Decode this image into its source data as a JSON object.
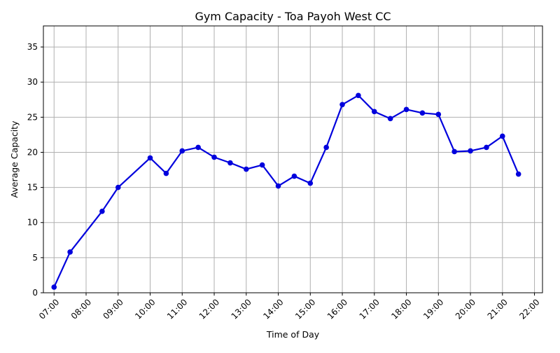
{
  "chart_data": {
    "type": "line",
    "title": "Gym Capacity - Toa Payoh West CC",
    "xlabel": "Time of Day",
    "ylabel": "Average Capacity",
    "x_ticks": [
      "07:00",
      "08:00",
      "09:00",
      "10:00",
      "11:00",
      "12:00",
      "13:00",
      "14:00",
      "15:00",
      "16:00",
      "17:00",
      "18:00",
      "19:00",
      "20:00",
      "21:00",
      "22:00"
    ],
    "y_ticks": [
      0,
      5,
      10,
      15,
      20,
      25,
      30,
      35
    ],
    "xlim": [
      "06:40",
      "22:15"
    ],
    "ylim": [
      0,
      38
    ],
    "grid": true,
    "series": [
      {
        "color": "#0000dd",
        "marker": "circle",
        "points": [
          {
            "x": "07:00",
            "y": 0.8
          },
          {
            "x": "07:30",
            "y": 5.8
          },
          {
            "x": "08:30",
            "y": 11.6
          },
          {
            "x": "09:00",
            "y": 15.0
          },
          {
            "x": "10:00",
            "y": 19.2
          },
          {
            "x": "10:30",
            "y": 17.0
          },
          {
            "x": "11:00",
            "y": 20.2
          },
          {
            "x": "11:30",
            "y": 20.7
          },
          {
            "x": "12:00",
            "y": 19.3
          },
          {
            "x": "12:30",
            "y": 18.5
          },
          {
            "x": "13:00",
            "y": 17.6
          },
          {
            "x": "13:30",
            "y": 18.2
          },
          {
            "x": "14:00",
            "y": 15.2
          },
          {
            "x": "14:30",
            "y": 16.6
          },
          {
            "x": "15:00",
            "y": 15.6
          },
          {
            "x": "15:30",
            "y": 20.7
          },
          {
            "x": "16:00",
            "y": 26.8
          },
          {
            "x": "16:30",
            "y": 28.1
          },
          {
            "x": "17:00",
            "y": 25.8
          },
          {
            "x": "17:30",
            "y": 24.8
          },
          {
            "x": "18:00",
            "y": 26.1
          },
          {
            "x": "18:30",
            "y": 25.6
          },
          {
            "x": "19:00",
            "y": 25.4
          },
          {
            "x": "19:30",
            "y": 20.1
          },
          {
            "x": "20:00",
            "y": 20.2
          },
          {
            "x": "20:30",
            "y": 20.7
          },
          {
            "x": "21:00",
            "y": 22.3
          },
          {
            "x": "21:30",
            "y": 16.9
          }
        ]
      }
    ]
  }
}
